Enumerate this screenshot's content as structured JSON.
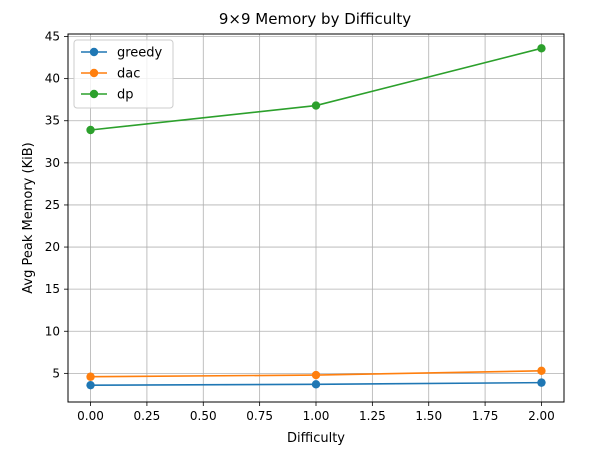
{
  "chart_data": {
    "type": "line",
    "title": "9×9 Memory by Difficulty",
    "xlabel": "Difficulty",
    "ylabel": "Avg Peak Memory (KiB)",
    "x": [
      0,
      1,
      2
    ],
    "xlim": [
      -0.1,
      2.1
    ],
    "ylim": [
      1.6,
      45.3
    ],
    "xticks": [
      0.0,
      0.25,
      0.5,
      0.75,
      1.0,
      1.25,
      1.5,
      1.75,
      2.0
    ],
    "xtick_labels": [
      "0.00",
      "0.25",
      "0.50",
      "0.75",
      "1.00",
      "1.25",
      "1.50",
      "1.75",
      "2.00"
    ],
    "yticks": [
      5,
      10,
      15,
      20,
      25,
      30,
      35,
      40,
      45
    ],
    "ytick_labels": [
      "5",
      "10",
      "15",
      "20",
      "25",
      "30",
      "35",
      "40",
      "45"
    ],
    "grid": true,
    "legend_position": "top-left",
    "series": [
      {
        "name": "greedy",
        "color": "#1f77b4",
        "values": [
          3.6,
          3.7,
          3.9
        ]
      },
      {
        "name": "dac",
        "color": "#ff7f0e",
        "values": [
          4.6,
          4.8,
          5.3
        ]
      },
      {
        "name": "dp",
        "color": "#2ca02c",
        "values": [
          33.9,
          36.8,
          43.6
        ]
      }
    ]
  }
}
